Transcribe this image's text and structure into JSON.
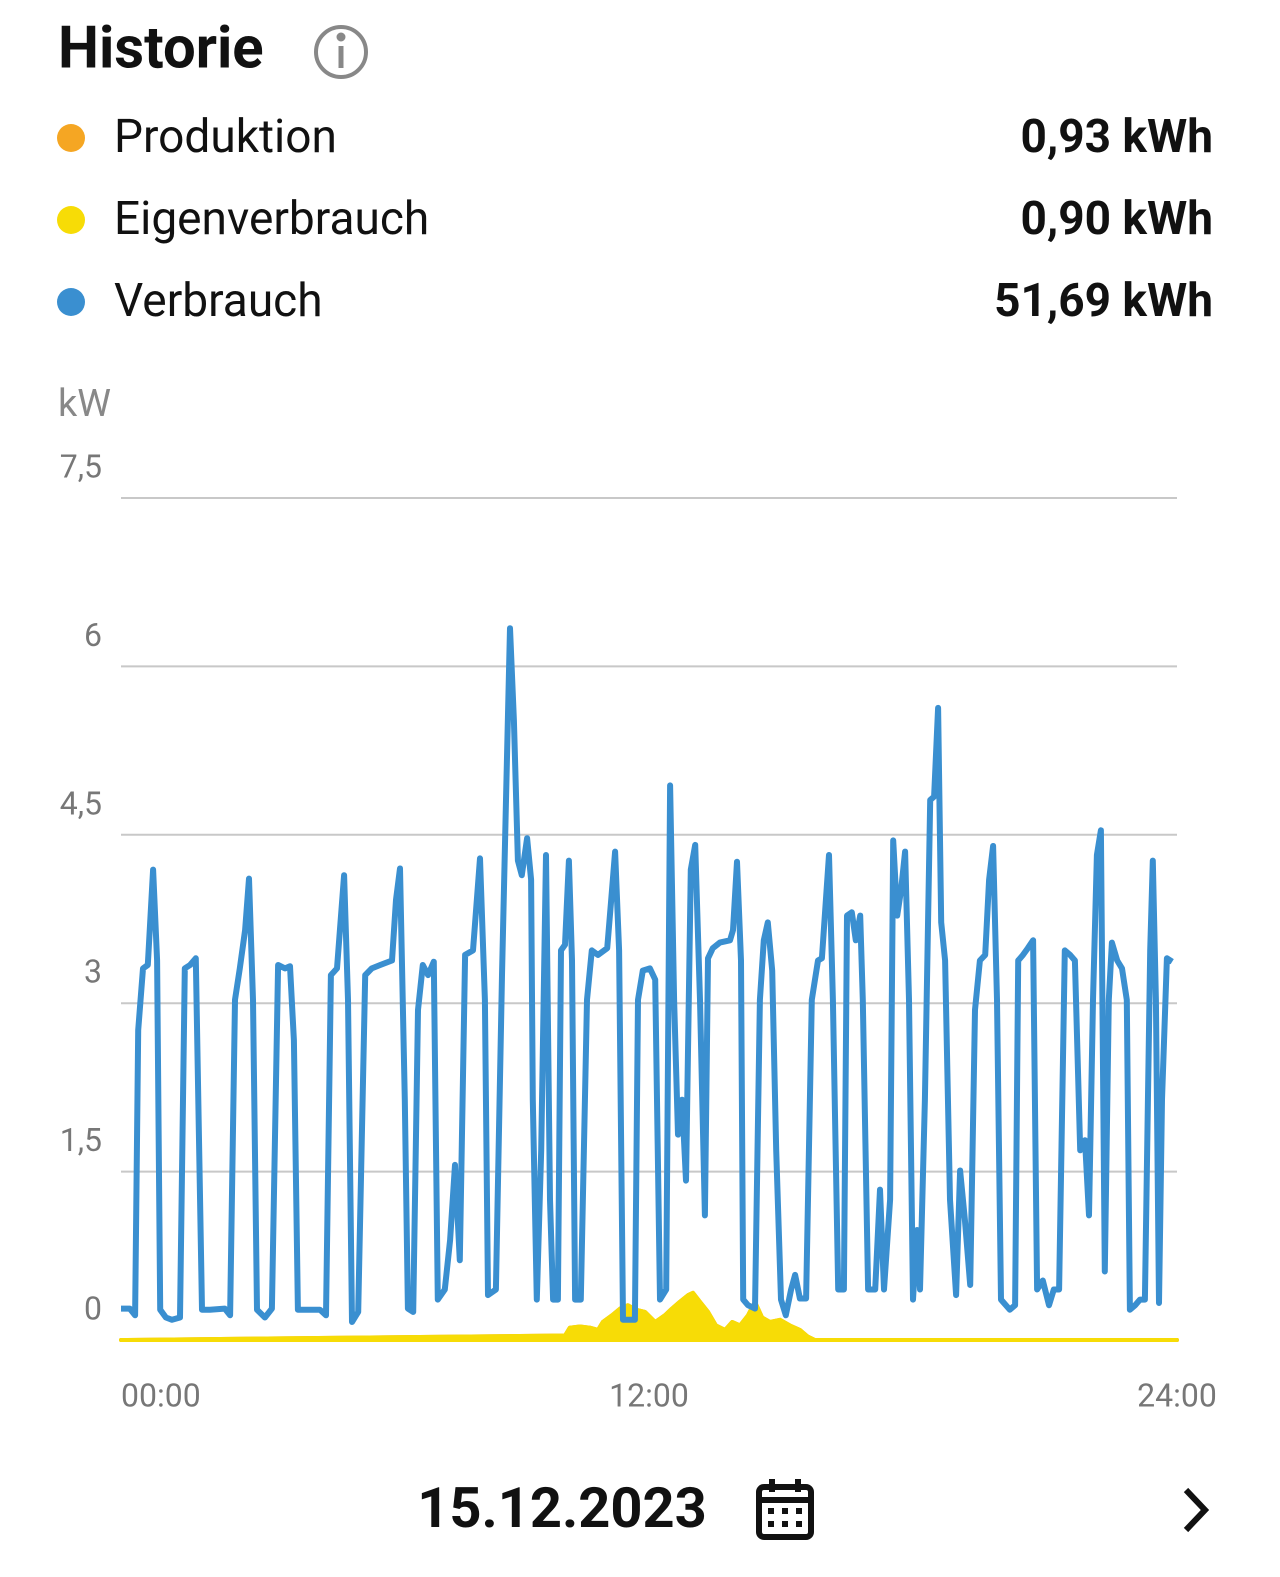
{
  "header": {
    "title": "Historie"
  },
  "chart_data": {
    "type": "line",
    "y_label": "kW",
    "xlim": [
      0,
      24
    ],
    "xticks": [
      {
        "value": 0,
        "label": "00:00"
      },
      {
        "value": 12,
        "label": "12:00"
      },
      {
        "value": 24,
        "label": "24:00"
      }
    ],
    "ylim": [
      0,
      7.5
    ],
    "yticks": [
      0,
      {
        "value": 1.5,
        "label": "1,5"
      },
      3,
      {
        "value": 4.5,
        "label": "4,5"
      },
      6,
      {
        "value": 7.5,
        "label": "7,5"
      }
    ],
    "grid": true,
    "series": [
      {
        "name": "Produktion",
        "total": "0,93 kWh",
        "color": "#f5a623",
        "style": "area",
        "x": [
          0,
          10.09,
          10.2,
          10.43,
          10.66,
          10.84,
          10.95,
          11.16,
          11.34,
          11.52,
          11.7,
          11.91,
          12.14,
          12.36,
          12.52,
          12.7,
          12.89,
          13,
          13.16,
          13.34,
          13.52,
          13.73,
          13.89,
          14.07,
          14.25,
          14.41,
          14.57,
          14.75,
          14.98,
          15.2,
          15.43,
          15.61,
          15.77,
          24
        ],
        "values": [
          0,
          0.04,
          0.11,
          0.12,
          0.11,
          0.09,
          0.16,
          0.22,
          0.28,
          0.31,
          0.27,
          0.25,
          0.16,
          0.22,
          0.28,
          0.34,
          0.4,
          0.42,
          0.34,
          0.25,
          0.13,
          0.09,
          0.16,
          0.13,
          0.22,
          0.34,
          0.2,
          0.16,
          0.18,
          0.13,
          0.09,
          0.03,
          0,
          0
        ]
      },
      {
        "name": "Eigenverbrauch",
        "total": "0,90 kWh",
        "color": "#f7dc06",
        "style": "area",
        "x": [
          0,
          10.09,
          10.2,
          10.43,
          10.66,
          10.84,
          10.95,
          11.16,
          11.34,
          11.52,
          11.7,
          11.91,
          12.14,
          12.36,
          12.52,
          12.7,
          12.89,
          13,
          13.16,
          13.34,
          13.52,
          13.73,
          13.89,
          14.07,
          14.25,
          14.41,
          14.57,
          14.75,
          14.98,
          15.2,
          15.43,
          15.61,
          15.77,
          24
        ],
        "values": [
          0,
          0.04,
          0.11,
          0.12,
          0.11,
          0.09,
          0.16,
          0.22,
          0.28,
          0.31,
          0.27,
          0.25,
          0.16,
          0.22,
          0.28,
          0.34,
          0.4,
          0.42,
          0.34,
          0.25,
          0.13,
          0.09,
          0.16,
          0.13,
          0.22,
          0.34,
          0.2,
          0.16,
          0.18,
          0.13,
          0.09,
          0.03,
          0,
          0
        ]
      },
      {
        "name": "Verbrauch",
        "total": "51,69 kWh",
        "color": "#3a8fd0",
        "style": "line",
        "x": [
          0,
          0.2,
          0.32,
          0.39,
          0.5,
          0.61,
          0.73,
          0.82,
          0.89,
          1.02,
          1.16,
          1.34,
          1.45,
          1.57,
          1.7,
          1.84,
          2.02,
          2.36,
          2.48,
          2.59,
          2.7,
          2.82,
          2.91,
          3,
          3.09,
          3.27,
          3.43,
          3.57,
          3.73,
          3.84,
          3.93,
          4.02,
          4.18,
          4.52,
          4.66,
          4.77,
          4.91,
          5.07,
          5.16,
          5.25,
          5.39,
          5.55,
          5.7,
          5.89,
          6.16,
          6.25,
          6.34,
          6.45,
          6.52,
          6.64,
          6.75,
          6.86,
          6.98,
          7.11,
          7.2,
          7.36,
          7.48,
          7.59,
          7.7,
          7.82,
          8,
          8.16,
          8.27,
          8.34,
          8.52,
          8.66,
          8.75,
          8.84,
          8.93,
          9.02,
          9.11,
          9.23,
          9.32,
          9.36,
          9.45,
          9.55,
          9.66,
          9.75,
          9.82,
          9.93,
          10,
          10.09,
          10.18,
          10.25,
          10.32,
          10.45,
          10.59,
          10.7,
          10.84,
          11.05,
          11.14,
          11.23,
          11.32,
          11.41,
          11.57,
          11.68,
          11.75,
          11.86,
          12.02,
          12.14,
          12.25,
          12.39,
          12.48,
          12.57,
          12.66,
          12.75,
          12.84,
          12.95,
          13.05,
          13.16,
          13.27,
          13.34,
          13.45,
          13.61,
          13.84,
          13.91,
          14,
          14.09,
          14.14,
          14.25,
          14.41,
          14.52,
          14.61,
          14.7,
          14.8,
          14.89,
          15,
          15.11,
          15.23,
          15.32,
          15.43,
          15.57,
          15.7,
          15.84,
          15.93,
          16.02,
          16.09,
          16.18,
          16.3,
          16.43,
          16.5,
          16.61,
          16.7,
          16.8,
          16.86,
          16.98,
          17.14,
          17.25,
          17.34,
          17.48,
          17.55,
          17.64,
          17.73,
          17.82,
          17.91,
          18,
          18.09,
          18.16,
          18.27,
          18.39,
          18.48,
          18.57,
          18.64,
          18.73,
          18.84,
          18.98,
          19.07,
          19.18,
          19.3,
          19.41,
          19.52,
          19.64,
          19.73,
          19.82,
          19.91,
          20,
          20.2,
          20.32,
          20.39,
          20.5,
          20.61,
          20.73,
          20.82,
          20.95,
          21.09,
          21.2,
          21.32,
          21.45,
          21.57,
          21.68,
          21.8,
          21.91,
          22,
          22.09,
          22.18,
          22.27,
          22.36,
          22.45,
          22.52,
          22.64,
          22.75,
          22.86,
          22.93,
          23.05,
          23.16,
          23.27,
          23.39,
          23.45,
          23.52,
          23.59,
          23.66,
          23.77,
          23.89
        ],
        "values": [
          0.28,
          0.28,
          0.22,
          2.76,
          3.31,
          3.34,
          4.19,
          3.38,
          0.27,
          0.2,
          0.18,
          0.2,
          3.31,
          3.34,
          3.4,
          0.27,
          0.27,
          0.28,
          0.22,
          3.03,
          3.31,
          3.65,
          4.11,
          3.03,
          0.27,
          0.2,
          0.28,
          3.34,
          3.31,
          3.33,
          2.67,
          0.27,
          0.27,
          0.27,
          0.22,
          3.25,
          3.31,
          4.14,
          3.03,
          0.16,
          0.25,
          3.25,
          3.31,
          3.34,
          3.38,
          3.92,
          4.2,
          2.14,
          0.28,
          0.25,
          2.94,
          3.34,
          3.25,
          3.37,
          0.36,
          0.45,
          0.89,
          1.56,
          0.71,
          3.43,
          3.47,
          4.29,
          3.03,
          0.4,
          0.45,
          3.25,
          4.81,
          6.34,
          5.52,
          4.27,
          4.14,
          4.47,
          4.1,
          2.14,
          0.36,
          1.69,
          4.32,
          1.25,
          0.36,
          0.36,
          3.47,
          3.52,
          4.27,
          3.38,
          0.36,
          0.36,
          3.03,
          3.47,
          3.43,
          3.49,
          3.92,
          4.35,
          3.47,
          0.18,
          0.18,
          0.18,
          3.03,
          3.29,
          3.31,
          3.21,
          0.36,
          0.45,
          4.94,
          3.03,
          1.83,
          2.14,
          1.42,
          4.19,
          4.41,
          3.03,
          1.11,
          3.4,
          3.49,
          3.54,
          3.56,
          3.65,
          4.26,
          3.38,
          0.36,
          0.31,
          0.28,
          3.03,
          3.56,
          3.72,
          3.29,
          1.69,
          0.36,
          0.22,
          0.45,
          0.58,
          0.37,
          0.37,
          3.03,
          3.38,
          3.4,
          3.92,
          4.32,
          3.03,
          0.45,
          0.45,
          3.78,
          3.81,
          3.56,
          3.78,
          3.03,
          0.45,
          0.45,
          1.34,
          0.45,
          1.25,
          4.45,
          3.78,
          4.01,
          4.35,
          3.03,
          0.36,
          0.98,
          0.45,
          2.14,
          4.81,
          4.84,
          5.63,
          3.72,
          3.38,
          1.25,
          0.4,
          1.51,
          1.07,
          0.49,
          2.94,
          3.38,
          3.43,
          4.1,
          4.4,
          3.03,
          0.36,
          0.27,
          0.31,
          3.38,
          3.43,
          3.49,
          3.56,
          0.45,
          0.53,
          0.31,
          0.45,
          0.45,
          3.47,
          3.43,
          3.38,
          1.69,
          1.78,
          1.11,
          3.03,
          4.32,
          4.54,
          0.61,
          3.03,
          3.54,
          3.38,
          3.31,
          3.03,
          0.27,
          0.31,
          0.36,
          0.36,
          3.47,
          4.27,
          3.03,
          0.33,
          2.14,
          3.4,
          3.37
        ]
      }
    ]
  },
  "footer": {
    "date": "15.12.2023"
  }
}
